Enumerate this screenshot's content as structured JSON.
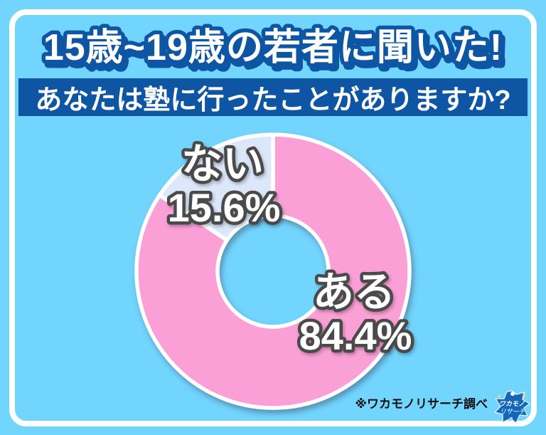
{
  "header": {
    "title": "15歳~19歳の若者に聞いた!",
    "question": "あなたは塾に行ったことがありますか?"
  },
  "chart_data": {
    "type": "pie",
    "subtype": "donut",
    "title": "あなたは塾に行ったことがありますか?",
    "start_angle_deg": -90,
    "direction": "clockwise",
    "value_suffix": "%",
    "slices": [
      {
        "label": "ある",
        "value": 84.4,
        "color": "#FBA0D6"
      },
      {
        "label": "ない",
        "value": 15.6,
        "color": "#DCE8FA"
      }
    ],
    "slice_border_color": "#FFFFFF",
    "legend": "labels-on-slices"
  },
  "footer": {
    "source_note": "※ワカモノリサーチ調べ",
    "logo": {
      "line1": "ワカモノ",
      "line2": "リサーチ"
    }
  },
  "colors": {
    "background": "#72D5FD",
    "panel_navy": "#0E56A4",
    "label_outline": "#4A4A4A",
    "frame_white": "#FFFFFF",
    "logo_blue": "#1565B8",
    "logo_accent": "#FFE14D"
  }
}
